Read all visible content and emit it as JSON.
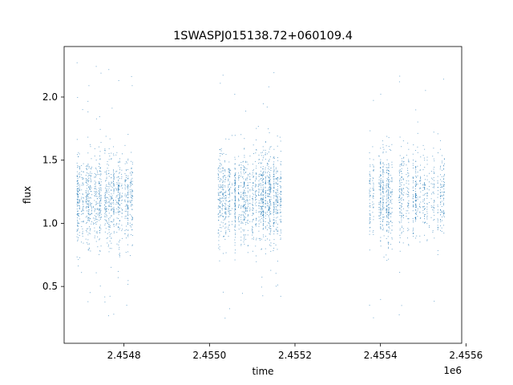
{
  "chart_data": {
    "type": "scatter",
    "title": "1SWASPJ015138.72+060109.4",
    "xlabel": "time",
    "ylabel": "flux",
    "x_offset_label": "1e6",
    "x_ticks": [
      {
        "value": 2.4548,
        "label": "2.4548"
      },
      {
        "value": 2.455,
        "label": "2.4550"
      },
      {
        "value": 2.4552,
        "label": "2.4552"
      },
      {
        "value": 2.4554,
        "label": "2.4554"
      },
      {
        "value": 2.4556,
        "label": "2.4556"
      }
    ],
    "y_ticks": [
      {
        "value": 0.5,
        "label": "0.5"
      },
      {
        "value": 1.0,
        "label": "1.0"
      },
      {
        "value": 1.5,
        "label": "1.5"
      },
      {
        "value": 2.0,
        "label": "2.0"
      }
    ],
    "xlim": [
      2.45466,
      2.45559
    ],
    "ylim": [
      0.05,
      2.4
    ],
    "grid": false,
    "legend": "none",
    "marker_color": "#1f77b4",
    "series": [
      {
        "observing_seasons": [
          {
            "x_range": [
              2.45469,
              2.45482
            ],
            "flux_center": 1.2,
            "flux_spread": 0.18,
            "flux_min": 0.2,
            "flux_max": 2.28,
            "density": 1.0
          },
          {
            "x_range": [
              2.45502,
              2.45517
            ],
            "flux_center": 1.2,
            "flux_spread": 0.18,
            "flux_min": 0.15,
            "flux_max": 2.25,
            "density": 0.95
          },
          {
            "x_range": [
              2.45537,
              2.45556
            ],
            "flux_center": 1.22,
            "flux_spread": 0.17,
            "flux_min": 0.25,
            "flux_max": 2.28,
            "density": 0.55
          }
        ]
      }
    ]
  }
}
